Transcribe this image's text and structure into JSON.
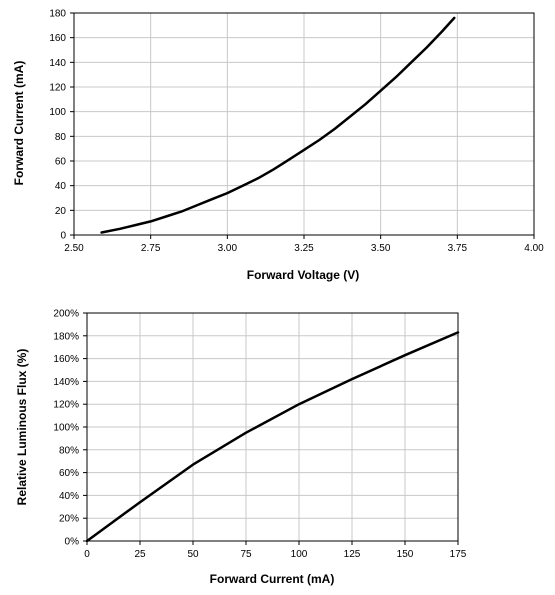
{
  "chart_data": [
    {
      "type": "line",
      "title": "",
      "xlabel": "Forward Voltage (V)",
      "ylabel": "Forward Current (mA)",
      "xlim": [
        2.5,
        4.0
      ],
      "ylim": [
        0,
        180
      ],
      "x_ticks": [
        "2.50",
        "2.75",
        "3.00",
        "3.25",
        "3.50",
        "3.75",
        "4.00"
      ],
      "y_ticks": [
        "0",
        "20",
        "40",
        "60",
        "80",
        "100",
        "120",
        "140",
        "160",
        "180"
      ],
      "grid": true,
      "series": [
        {
          "x": [
            2.59,
            2.65,
            2.7,
            2.75,
            2.8,
            2.85,
            2.9,
            2.95,
            3.0,
            3.05,
            3.1,
            3.15,
            3.2,
            3.25,
            3.3,
            3.35,
            3.4,
            3.45,
            3.5,
            3.55,
            3.6,
            3.65,
            3.7,
            3.74
          ],
          "y": [
            2,
            5,
            8,
            11,
            15,
            19,
            24,
            29,
            34,
            40,
            46,
            53,
            61,
            69,
            77,
            86,
            96,
            106,
            117,
            128,
            140,
            152,
            165,
            176
          ]
        }
      ]
    },
    {
      "type": "line",
      "title": "",
      "xlabel": "Forward Current (mA)",
      "ylabel": "Relative Luminous Flux (%)",
      "xlim": [
        0,
        175
      ],
      "ylim": [
        0,
        200
      ],
      "x_ticks": [
        "0",
        "25",
        "50",
        "75",
        "100",
        "125",
        "150",
        "175"
      ],
      "y_ticks": [
        "0%",
        "20%",
        "40%",
        "60%",
        "80%",
        "100%",
        "120%",
        "140%",
        "160%",
        "180%",
        "200%"
      ],
      "grid": true,
      "series": [
        {
          "x": [
            0,
            25,
            50,
            75,
            100,
            125,
            150,
            175
          ],
          "y": [
            0,
            34,
            67,
            95,
            120,
            142,
            163,
            183
          ]
        }
      ]
    }
  ]
}
